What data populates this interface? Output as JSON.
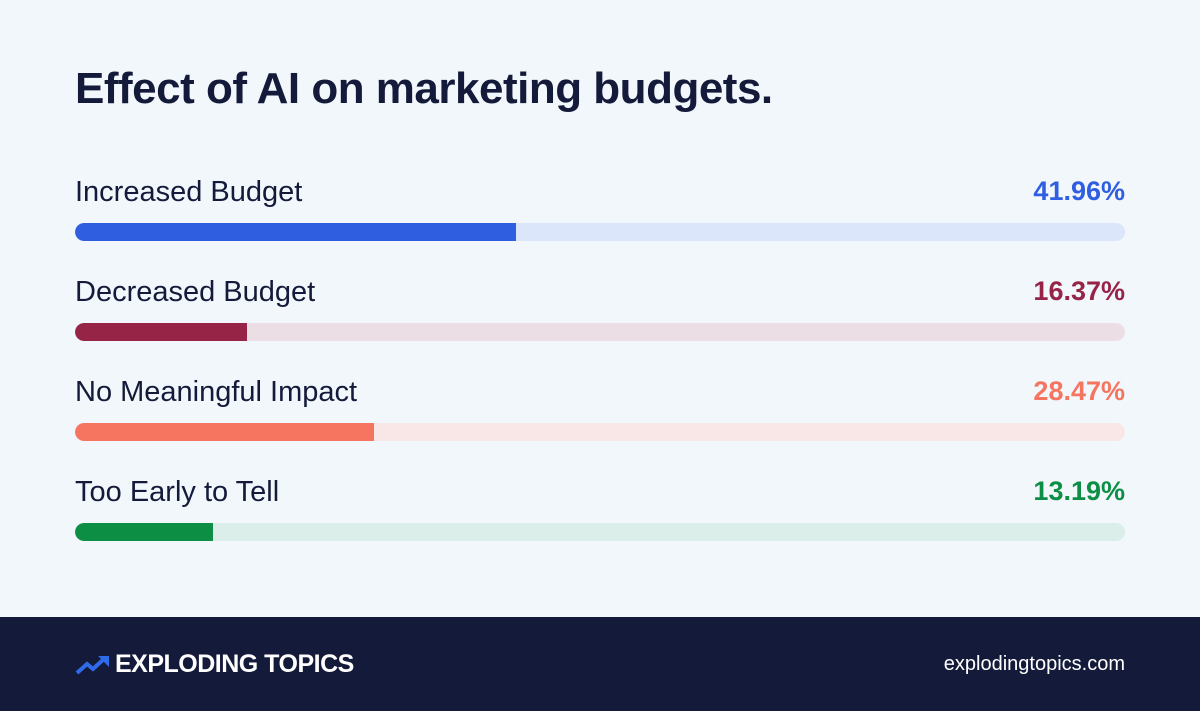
{
  "chart_data": {
    "type": "bar",
    "orientation": "horizontal-progress",
    "title": "Effect of AI on marketing budgets.",
    "xlim": [
      0,
      100
    ],
    "categories": [
      "Increased Budget",
      "Decreased Budget",
      "No Meaningful Impact",
      "Too Early to Tell"
    ],
    "values": [
      41.96,
      16.37,
      28.47,
      13.19
    ],
    "value_labels": [
      "41.96%",
      "16.37%",
      "28.47%",
      "13.19%"
    ],
    "colors": [
      "#2F5EE0",
      "#962447",
      "#F57560",
      "#0C8F45"
    ],
    "track_colors": [
      "#DCE6FA",
      "#EBDFE5",
      "#F8E7E6",
      "#DCEEE9"
    ]
  },
  "footer": {
    "brand": "EXPLODING TOPICS",
    "brand_icon": "trend-arrow-icon",
    "website": "explodingtopics.com",
    "background": "#141A3A"
  }
}
